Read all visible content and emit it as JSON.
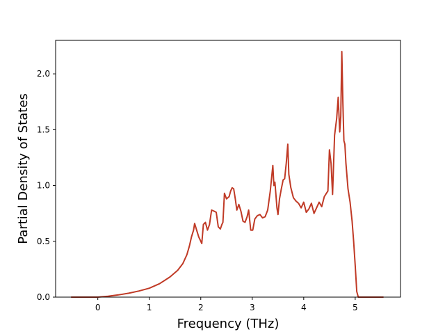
{
  "chart_data": {
    "type": "line",
    "title": "",
    "xlabel": "Frequency (THz)",
    "ylabel": "Partial Density of States",
    "xlim": [
      -0.82,
      5.88
    ],
    "ylim": [
      0.0,
      2.3
    ],
    "x_ticks": [
      {
        "value": 0,
        "label": "0"
      },
      {
        "value": 1,
        "label": "1"
      },
      {
        "value": 2,
        "label": "2"
      },
      {
        "value": 3,
        "label": "3"
      },
      {
        "value": 4,
        "label": "4"
      },
      {
        "value": 5,
        "label": "5"
      }
    ],
    "y_ticks": [
      {
        "value": 0.0,
        "label": "0.0"
      },
      {
        "value": 0.5,
        "label": "0.5"
      },
      {
        "value": 1.0,
        "label": "1.0"
      },
      {
        "value": 1.5,
        "label": "1.5"
      },
      {
        "value": 2.0,
        "label": "2.0"
      }
    ],
    "grid": false,
    "legend": "none",
    "series": [
      {
        "color": "#c03a26",
        "x": [
          -0.52,
          -0.2,
          0,
          0.2,
          0.4,
          0.6,
          0.8,
          1.0,
          1.2,
          1.4,
          1.55,
          1.65,
          1.73,
          1.78,
          1.82,
          1.86,
          1.88,
          1.92,
          1.96,
          2.0,
          2.02,
          2.05,
          2.09,
          2.13,
          2.17,
          2.21,
          2.26,
          2.3,
          2.34,
          2.38,
          2.41,
          2.43,
          2.46,
          2.5,
          2.55,
          2.58,
          2.61,
          2.64,
          2.67,
          2.7,
          2.74,
          2.78,
          2.82,
          2.86,
          2.9,
          2.93,
          2.97,
          3.01,
          3.05,
          3.1,
          3.15,
          3.2,
          3.25,
          3.3,
          3.35,
          3.4,
          3.42,
          3.44,
          3.46,
          3.48,
          3.5,
          3.53,
          3.56,
          3.6,
          3.63,
          3.66,
          3.69,
          3.71,
          3.75,
          3.8,
          3.85,
          3.9,
          3.95,
          4.0,
          4.05,
          4.1,
          4.15,
          4.2,
          4.25,
          4.3,
          4.35,
          4.4,
          4.44,
          4.47,
          4.5,
          4.53,
          4.56,
          4.6,
          4.64,
          4.67,
          4.7,
          4.72,
          4.74,
          4.76,
          4.78,
          4.8,
          4.82,
          4.86,
          4.9,
          4.94,
          4.97,
          5.0,
          5.03,
          5.06,
          5.1,
          5.3,
          5.55
        ],
        "values": [
          0.0,
          0.0,
          0.0,
          0.008,
          0.02,
          0.035,
          0.055,
          0.08,
          0.12,
          0.18,
          0.24,
          0.3,
          0.38,
          0.46,
          0.54,
          0.6,
          0.66,
          0.6,
          0.54,
          0.5,
          0.48,
          0.65,
          0.67,
          0.6,
          0.65,
          0.78,
          0.77,
          0.76,
          0.63,
          0.61,
          0.65,
          0.67,
          0.93,
          0.88,
          0.9,
          0.95,
          0.98,
          0.97,
          0.88,
          0.78,
          0.83,
          0.77,
          0.68,
          0.67,
          0.72,
          0.78,
          0.6,
          0.6,
          0.7,
          0.73,
          0.74,
          0.71,
          0.72,
          0.78,
          0.95,
          1.18,
          1.0,
          1.03,
          0.92,
          0.8,
          0.74,
          0.88,
          0.96,
          1.05,
          1.06,
          1.2,
          1.37,
          1.1,
          0.98,
          0.89,
          0.86,
          0.84,
          0.8,
          0.85,
          0.76,
          0.79,
          0.84,
          0.75,
          0.8,
          0.85,
          0.81,
          0.9,
          0.93,
          0.95,
          1.32,
          1.2,
          0.92,
          1.45,
          1.6,
          1.79,
          1.48,
          1.62,
          2.2,
          1.75,
          1.4,
          1.37,
          1.2,
          0.97,
          0.85,
          0.68,
          0.5,
          0.28,
          0.05,
          0.0,
          0.0,
          0.0,
          0.0
        ]
      }
    ]
  }
}
